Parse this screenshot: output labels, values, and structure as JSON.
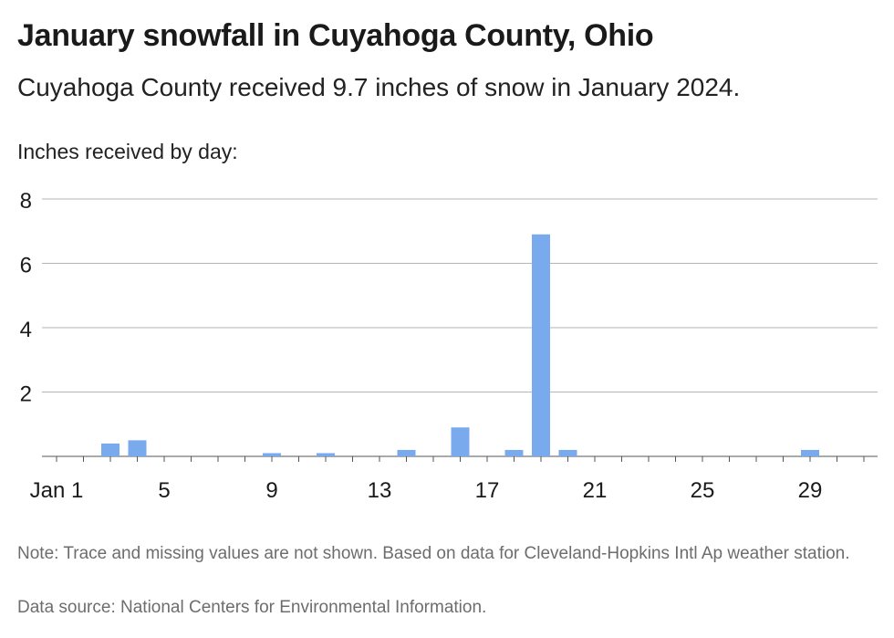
{
  "header": {
    "title": "January snowfall in Cuyahoga County, Ohio",
    "subtitle": "Cuyahoga County received 9.7 inches of snow in January 2024."
  },
  "footer": {
    "note": "Note: Trace and missing values are not shown. Based on data for Cleveland-Hopkins Intl Ap weather station.",
    "source": "Data source: National Centers for Environmental Information."
  },
  "colors": {
    "bar": "#7aaaee",
    "grid": "#b5b5b5",
    "axis": "#555555"
  },
  "chart_data": {
    "type": "bar",
    "title": "January snowfall in Cuyahoga County, Ohio",
    "subtitle": "Cuyahoga County received 9.7 inches of snow in January 2024.",
    "ylabel": "Inches received by day:",
    "xlabel": "",
    "ylim": [
      0,
      8
    ],
    "xlim": [
      1,
      31
    ],
    "y_ticks": [
      2,
      4,
      6,
      8
    ],
    "x_ticks": [
      1,
      5,
      9,
      13,
      17,
      21,
      25,
      29
    ],
    "x_tick_labels": [
      "Jan 1",
      "5",
      "9",
      "13",
      "17",
      "21",
      "25",
      "29"
    ],
    "grid": true,
    "legend": "none",
    "x": [
      3,
      4,
      9,
      11,
      14,
      16,
      18,
      19,
      20,
      29
    ],
    "values": [
      0.4,
      0.5,
      0.1,
      0.1,
      0.2,
      0.9,
      0.2,
      6.9,
      0.2,
      0.2
    ]
  }
}
